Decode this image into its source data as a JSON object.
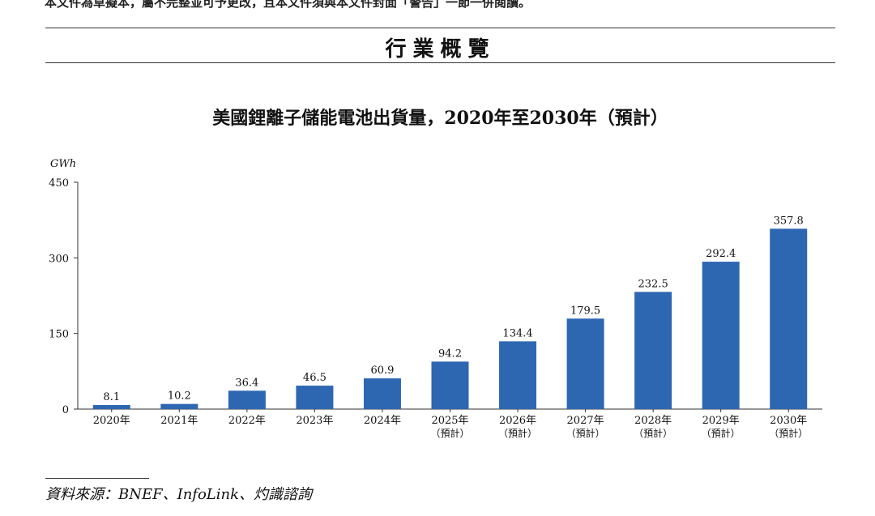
{
  "header": {
    "top_note": "本文件為草擬本，屬不完整並可予更改，且本文件須與本文件封面「警告」一節一併閱讀。",
    "section_title": "行業概覽"
  },
  "chart_data": {
    "type": "bar",
    "title": "美國鋰離子儲能電池出貨量，2020年至2030年（預計）",
    "ylabel": "GWh",
    "xlabel": "",
    "ylim": [
      0,
      450
    ],
    "yticks": [
      0,
      150,
      300,
      450
    ],
    "categories": [
      {
        "year": "2020年",
        "note": ""
      },
      {
        "year": "2021年",
        "note": ""
      },
      {
        "year": "2022年",
        "note": ""
      },
      {
        "year": "2023年",
        "note": ""
      },
      {
        "year": "2024年",
        "note": ""
      },
      {
        "year": "2025年",
        "note": "（預計）"
      },
      {
        "year": "2026年",
        "note": "（預計）"
      },
      {
        "year": "2027年",
        "note": "（預計）"
      },
      {
        "year": "2028年",
        "note": "（預計）"
      },
      {
        "year": "2029年",
        "note": "（預計）"
      },
      {
        "year": "2030年",
        "note": "（預計）"
      }
    ],
    "values": [
      8.1,
      10.2,
      36.4,
      46.5,
      60.9,
      94.2,
      134.4,
      179.5,
      232.5,
      292.4,
      357.8
    ],
    "value_labels": [
      "8.1",
      "10.2",
      "36.4",
      "46.5",
      "60.9",
      "94.2",
      "134.4",
      "179.5",
      "232.5",
      "292.4",
      "357.8"
    ],
    "bar_color": "#2e67b1",
    "grid": false
  },
  "footer": {
    "source": "資料來源：BNEF、InfoLink、灼識諮詢"
  }
}
